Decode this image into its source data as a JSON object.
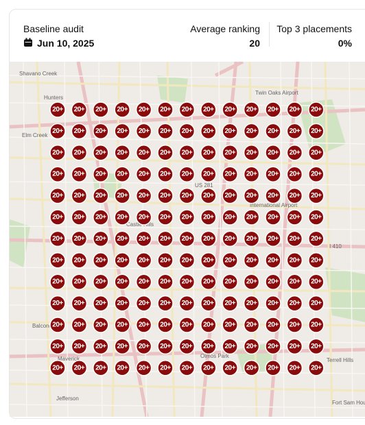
{
  "header": {
    "title": "Baseline audit",
    "date": "Jun 10, 2025"
  },
  "stats": [
    {
      "label": "Average ranking",
      "value": "20"
    },
    {
      "label": "Top 3 placements",
      "value": "0%"
    }
  ],
  "map": {
    "labels": [
      "Shavano Creek",
      "Hunters",
      "Elm Creek",
      "Twin Oaks Airport",
      "Castle Hills",
      "US 281",
      "International Airport",
      "I 410",
      "Balcones",
      "Olmos Park",
      "Terrell Hills",
      "Jefferson",
      "Fort Sam Houston",
      "Maverick"
    ],
    "grid": [
      [
        "20+",
        "20+",
        "20+",
        "20+",
        "20+",
        "20+",
        "20+",
        "20+",
        "20+",
        "20+",
        "20+",
        "20+",
        "20+"
      ],
      [
        "20+",
        "20+",
        "20+",
        "20+",
        "20+",
        "20+",
        "20+",
        "20+",
        "20+",
        "20+",
        "20+",
        "20+",
        "20+"
      ],
      [
        "20+",
        "20+",
        "20+",
        "20+",
        "20+",
        "20+",
        "20+",
        "20+",
        "20+",
        "20+",
        "20+",
        "20+",
        "20+"
      ],
      [
        "20+",
        "20+",
        "20+",
        "20+",
        "20+",
        "20+",
        "20+",
        "20+",
        "20+",
        "20+",
        "20+",
        "20+",
        "20+"
      ],
      [
        "20+",
        "20+",
        "20+",
        "20+",
        "20+",
        "20+",
        "20+",
        "20+",
        "20+",
        "20+",
        "20+",
        "20+",
        "20+"
      ],
      [
        "20+",
        "20+",
        "20+",
        "20+",
        "20+",
        "20+",
        "20+",
        "20+",
        "20+",
        "20+",
        "20+",
        "20+",
        "20+"
      ],
      [
        "20+",
        "20+",
        "20+",
        "20+",
        "20+",
        "20+",
        "20+",
        "20+",
        "20+",
        "20+",
        "20+",
        "20+",
        "20+"
      ],
      [
        "20+",
        "20+",
        "20+",
        "20+",
        "20+",
        "20+",
        "20+",
        "20+",
        "20+",
        "20+",
        "20+",
        "20+",
        "20+"
      ],
      [
        "20+",
        "20+",
        "20+",
        "20+",
        "20+",
        "20+",
        "20+",
        "20+",
        "20+",
        "20+",
        "20+",
        "20+",
        "20+"
      ],
      [
        "20+",
        "20+",
        "20+",
        "20+",
        "20+",
        "20+",
        "20+",
        "20+",
        "20+",
        "20+",
        "20+",
        "20+",
        "20+"
      ],
      [
        "20+",
        "20+",
        "20+",
        "20+",
        "20+",
        "20+",
        "20+",
        "20+",
        "20+",
        "20+",
        "20+",
        "20+",
        "20+"
      ],
      [
        "20+",
        "20+",
        "20+",
        "20+",
        "20+",
        "20+",
        "20+",
        "20+",
        "20+",
        "20+",
        "20+",
        "20+",
        "20+"
      ],
      [
        "20+",
        "20+",
        "20+",
        "20+",
        "20+",
        "20+",
        "20+",
        "20+",
        "20+",
        "20+",
        "20+",
        "20+",
        "20+"
      ]
    ]
  }
}
